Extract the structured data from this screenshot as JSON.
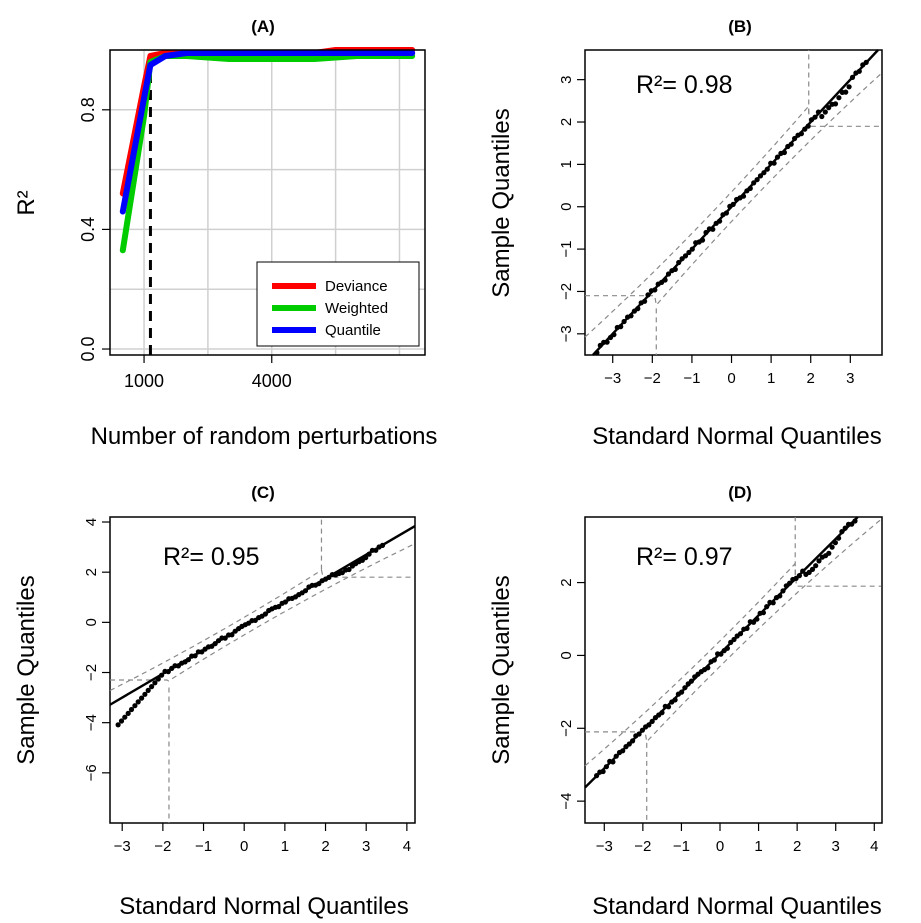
{
  "chart_data": [
    {
      "panel": "A",
      "type": "line",
      "title": "(A)",
      "xlabel": "Number of random perturbations",
      "ylabel": "R²",
      "xlim": [
        200,
        7600
      ],
      "ylim": [
        -0.02,
        1.0
      ],
      "xticks": [
        1000,
        4000
      ],
      "yticks": [
        0.0,
        0.4,
        0.8
      ],
      "ytick_labels": [
        "0.0",
        "0.4",
        "0.8"
      ],
      "grid": true,
      "vline": 1150,
      "legend_position": "bottom-right",
      "colors": {
        "Deviance": "#ff0000",
        "Weighted": "#00cc00",
        "Quantile": "#0000ff"
      },
      "series": [
        {
          "name": "Deviance",
          "x": [
            500,
            1000,
            1150,
            1500,
            2000,
            3000,
            4000,
            5000,
            5500,
            6000,
            7300
          ],
          "y": [
            0.52,
            0.88,
            0.98,
            0.99,
            0.99,
            0.99,
            0.99,
            0.99,
            1.0,
            1.0,
            1.0
          ]
        },
        {
          "name": "Weighted",
          "x": [
            500,
            1000,
            1150,
            1500,
            2000,
            3000,
            4000,
            5000,
            6000,
            7300
          ],
          "y": [
            0.33,
            0.78,
            0.96,
            0.98,
            0.98,
            0.97,
            0.97,
            0.97,
            0.98,
            0.98
          ]
        },
        {
          "name": "Quantile",
          "x": [
            500,
            1000,
            1150,
            1500,
            2000,
            3000,
            4000,
            5000,
            6000,
            7300
          ],
          "y": [
            0.46,
            0.84,
            0.95,
            0.98,
            0.99,
            0.99,
            0.99,
            0.99,
            0.99,
            0.99
          ]
        }
      ]
    },
    {
      "panel": "B",
      "type": "scatter",
      "title": "(B)",
      "xlabel": "Standard Normal Quantiles",
      "ylabel": "Sample Quantiles",
      "annotation": "R²= 0.98",
      "xlim": [
        -3.7,
        3.8
      ],
      "ylim": [
        -3.5,
        3.7
      ],
      "xticks": [
        -3,
        -2,
        -1,
        0,
        1,
        2,
        3
      ],
      "yticks": [
        -3,
        -2,
        -1,
        0,
        1,
        2,
        3
      ],
      "xtick_labels": [
        "−3",
        "−2",
        "−1",
        "0",
        "1",
        "2",
        "3"
      ],
      "ytick_labels": [
        "−3",
        "−2",
        "−1",
        "0",
        "1",
        "2",
        "3"
      ],
      "reference_line": {
        "slope": 1.0,
        "intercept": 0.0
      },
      "n_points": 80,
      "point_range": [
        -3.4,
        3.4
      ],
      "band_asymptotes": [
        -2.1,
        1.9
      ],
      "band_center": -0.1,
      "band_vertical": [
        -1.9,
        1.95
      ]
    },
    {
      "panel": "C",
      "type": "scatter",
      "title": "(C)",
      "xlabel": "Standard Normal Quantiles",
      "ylabel": "Sample Quantiles",
      "annotation": "R²= 0.95",
      "xlim": [
        -3.3,
        4.2
      ],
      "ylim": [
        -8.0,
        4.2
      ],
      "xticks": [
        -3,
        -2,
        -1,
        0,
        1,
        2,
        3,
        4
      ],
      "yticks": [
        -6,
        -4,
        -2,
        0,
        2,
        4
      ],
      "xtick_labels": [
        "−3",
        "−2",
        "−1",
        "0",
        "1",
        "2",
        "3",
        "4"
      ],
      "ytick_labels": [
        "−6",
        "−4",
        "−2",
        "0",
        "2",
        "4"
      ],
      "reference_line": {
        "slope": 0.95,
        "intercept": -0.15
      },
      "n_points": 80,
      "point_range": [
        -3.1,
        3.4
      ],
      "band_asymptotes": [
        -2.3,
        1.8
      ],
      "band_center": -0.25,
      "band_vertical": [
        -1.85,
        1.9
      ]
    },
    {
      "panel": "D",
      "type": "scatter",
      "title": "(D)",
      "xlabel": "Standard Normal Quantiles",
      "ylabel": "Sample Quantiles",
      "annotation": "R²= 0.97",
      "xlim": [
        -3.5,
        4.2
      ],
      "ylim": [
        -4.6,
        3.8
      ],
      "xticks": [
        -3,
        -2,
        -1,
        0,
        1,
        2,
        3,
        4
      ],
      "yticks": [
        -4,
        -2,
        0,
        2
      ],
      "xtick_labels": [
        "−3",
        "−2",
        "−1",
        "0",
        "1",
        "2",
        "3",
        "4"
      ],
      "ytick_labels": [
        "−4",
        "−2",
        "0",
        "2"
      ],
      "reference_line": {
        "slope": 1.05,
        "intercept": 0.05
      },
      "n_points": 80,
      "point_range": [
        -3.2,
        3.5
      ],
      "band_asymptotes": [
        -2.1,
        1.9
      ],
      "band_center": -0.1,
      "band_vertical": [
        -1.9,
        1.95
      ]
    }
  ]
}
